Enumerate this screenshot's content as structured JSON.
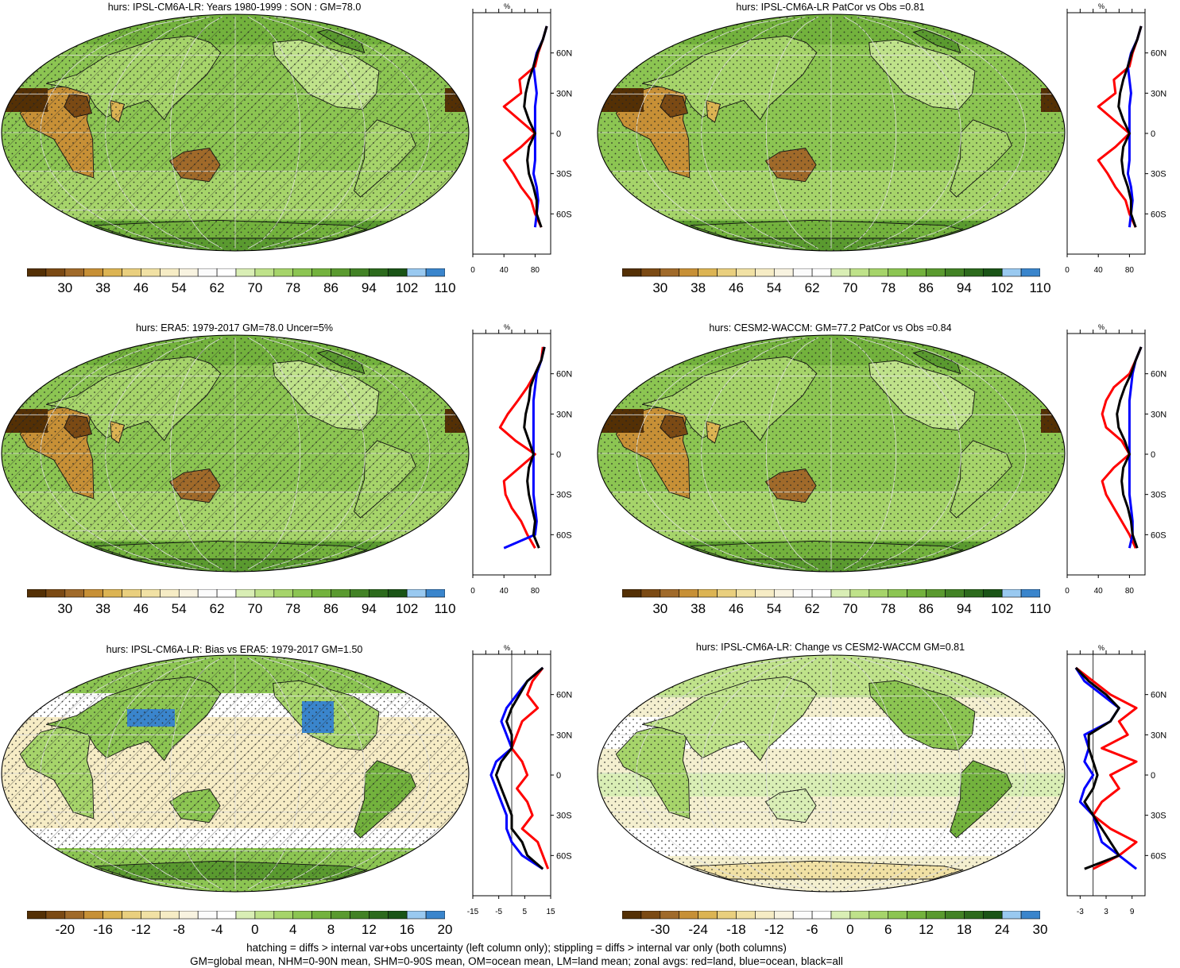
{
  "footer": {
    "line1": "hatching = diffs > internal var+obs uncertainty (left column only); stippling = diffs > internal var only (both columns)",
    "line2": "GM=global mean, NHM=0-90N mean, SHM=0-90S mean, OM=ocean mean, LM=land mean; zonal avgs: red=land, blue=ocean, black=all"
  },
  "colors": {
    "land": "#ff0000",
    "ocean": "#0000ff",
    "all": "#000000",
    "abs_palette": [
      "#543005",
      "#7b4a14",
      "#a06a2a",
      "#c79036",
      "#dcb453",
      "#e9cf7e",
      "#f1e1a4",
      "#f6ecc5",
      "#f8f3e0",
      "#fbfbfb",
      "#ffffff",
      "#d9eeb5",
      "#bfe28a",
      "#a6d46a",
      "#8cc552",
      "#73b23d",
      "#5a9a2f",
      "#428225",
      "#2c6a1c",
      "#1a5416",
      "#99c9f0",
      "#3a85cc"
    ],
    "diff_palette": [
      "#543005",
      "#7b4a14",
      "#a06a2a",
      "#c79036",
      "#dcb453",
      "#e9cf7e",
      "#f6ecc5",
      "#fbfbfb",
      "#ffffff",
      "#d9eeb5",
      "#bfe28a",
      "#a6d46a",
      "#8cc552",
      "#5a9a2f",
      "#2c6a1c",
      "#1a5416",
      "#99c9f0",
      "#3a85cc"
    ]
  },
  "chart_data": [
    {
      "id": "p1",
      "type": "heatmap",
      "title": "hurs: IPSL-CM6A-LR: Years 1980-1999 : SON : GM=78.0",
      "colorbar_ticks": [
        "30",
        "38",
        "46",
        "54",
        "62",
        "70",
        "78",
        "86",
        "94",
        "102",
        "110"
      ],
      "profile": {
        "unit": "%",
        "xticks": [
          "0",
          "40",
          "80"
        ],
        "xlim": [
          0,
          100
        ],
        "lat_ticks": [
          "60N",
          "30N",
          "0",
          "30S",
          "60S"
        ],
        "lat": [
          80,
          70,
          60,
          50,
          40,
          30,
          20,
          10,
          0,
          -10,
          -20,
          -30,
          -40,
          -50,
          -60,
          -70
        ],
        "land": [
          95,
          90,
          84,
          80,
          60,
          62,
          40,
          60,
          80,
          62,
          40,
          52,
          62,
          75,
          80,
          88
        ],
        "ocean": [
          95,
          90,
          82,
          78,
          80,
          82,
          80,
          80,
          80,
          80,
          80,
          78,
          82,
          84,
          82,
          80
        ],
        "all": [
          95,
          90,
          83,
          78,
          72,
          68,
          66,
          72,
          80,
          72,
          70,
          72,
          78,
          82,
          82,
          88
        ]
      }
    },
    {
      "id": "p2",
      "type": "heatmap",
      "title": "hurs: IPSL-CM6A-LR PatCor vs Obs =0.81",
      "colorbar_ticks": [
        "30",
        "38",
        "46",
        "54",
        "62",
        "70",
        "78",
        "86",
        "94",
        "102",
        "110"
      ],
      "profile": {
        "unit": "%",
        "xticks": [
          "0",
          "40",
          "80"
        ],
        "xlim": [
          0,
          100
        ],
        "lat_ticks": [
          "60N",
          "30N",
          "0",
          "30S",
          "60S"
        ],
        "lat": [
          80,
          70,
          60,
          50,
          40,
          30,
          20,
          10,
          0,
          -10,
          -20,
          -30,
          -40,
          -50,
          -60,
          -70
        ],
        "land": [
          95,
          90,
          84,
          80,
          60,
          62,
          40,
          60,
          80,
          62,
          40,
          52,
          62,
          75,
          80,
          88
        ],
        "ocean": [
          95,
          90,
          82,
          78,
          80,
          82,
          80,
          80,
          80,
          80,
          80,
          78,
          82,
          84,
          82,
          80
        ],
        "all": [
          95,
          90,
          83,
          78,
          72,
          68,
          66,
          72,
          80,
          72,
          70,
          72,
          78,
          82,
          82,
          88
        ]
      }
    },
    {
      "id": "p3",
      "type": "heatmap",
      "title": "hurs: ERA5: 1979-2017 GM=78.0 Uncer=5%",
      "colorbar_ticks": [
        "30",
        "38",
        "46",
        "54",
        "62",
        "70",
        "78",
        "86",
        "94",
        "102",
        "110"
      ],
      "profile": {
        "unit": "%",
        "xticks": [
          "0",
          "40",
          "80"
        ],
        "xlim": [
          0,
          100
        ],
        "lat_ticks": [
          "60N",
          "30N",
          "0",
          "30S",
          "60S"
        ],
        "lat": [
          80,
          70,
          60,
          50,
          40,
          30,
          20,
          10,
          0,
          -10,
          -20,
          -30,
          -40,
          -50,
          -60,
          -70
        ],
        "land": [
          90,
          88,
          80,
          70,
          58,
          45,
          35,
          55,
          80,
          60,
          40,
          42,
          50,
          62,
          70,
          80
        ],
        "ocean": [
          92,
          88,
          82,
          80,
          78,
          78,
          78,
          78,
          78,
          78,
          78,
          78,
          80,
          82,
          80,
          40
        ],
        "all": [
          92,
          88,
          80,
          74,
          72,
          68,
          66,
          72,
          78,
          72,
          70,
          72,
          76,
          80,
          78,
          85
        ]
      }
    },
    {
      "id": "p4",
      "type": "heatmap",
      "title": "hurs: CESM2-WACCM: GM=77.2 PatCor vs Obs =0.84",
      "colorbar_ticks": [
        "30",
        "38",
        "46",
        "54",
        "62",
        "70",
        "78",
        "86",
        "94",
        "102",
        "110"
      ],
      "profile": {
        "unit": "%",
        "xticks": [
          "0",
          "40",
          "80"
        ],
        "xlim": [
          0,
          100
        ],
        "lat_ticks": [
          "60N",
          "30N",
          "0",
          "30S",
          "60S"
        ],
        "lat": [
          80,
          70,
          60,
          50,
          40,
          30,
          20,
          10,
          0,
          -10,
          -20,
          -30,
          -40,
          -50,
          -60,
          -70
        ],
        "land": [
          95,
          88,
          80,
          60,
          50,
          45,
          50,
          70,
          80,
          60,
          45,
          50,
          60,
          70,
          80,
          88
        ],
        "ocean": [
          95,
          88,
          84,
          82,
          80,
          80,
          80,
          80,
          80,
          80,
          80,
          80,
          82,
          84,
          84,
          80
        ],
        "all": [
          95,
          88,
          82,
          74,
          68,
          64,
          66,
          74,
          80,
          72,
          70,
          72,
          78,
          82,
          84,
          90
        ]
      }
    },
    {
      "id": "p5",
      "type": "heatmap",
      "title": "hurs: IPSL-CM6A-LR: Bias vs ERA5: 1979-2017  GM=1.50",
      "colorbar_ticks": [
        "-20",
        "-16",
        "-12",
        "-8",
        "-4",
        "0",
        "4",
        "8",
        "12",
        "16",
        "20"
      ],
      "profile": {
        "unit": "%",
        "xticks": [
          "-15",
          "-5",
          "5",
          "15"
        ],
        "xlim": [
          -15,
          15
        ],
        "zero_line": 0,
        "lat_ticks": [
          "60N",
          "30N",
          "0",
          "30S",
          "60S"
        ],
        "lat": [
          80,
          70,
          60,
          50,
          40,
          30,
          20,
          10,
          0,
          -10,
          -20,
          -30,
          -40,
          -50,
          -60,
          -70
        ],
        "land": [
          12,
          8,
          6,
          10,
          4,
          2,
          0,
          4,
          6,
          2,
          6,
          8,
          4,
          10,
          12,
          14
        ],
        "ocean": [
          12,
          6,
          2,
          -2,
          -4,
          -2,
          0,
          -6,
          -8,
          -6,
          -4,
          -2,
          -2,
          0,
          4,
          12
        ],
        "all": [
          12,
          6,
          3,
          0,
          -2,
          0,
          0,
          -4,
          -6,
          -4,
          -2,
          0,
          0,
          4,
          6,
          12
        ]
      }
    },
    {
      "id": "p6",
      "type": "heatmap",
      "title": "hurs: IPSL-CM6A-LR: Change vs CESM2-WACCM GM=0.81",
      "colorbar_ticks": [
        "-30",
        "-24",
        "-18",
        "-12",
        "-6",
        "0",
        "6",
        "12",
        "18",
        "24",
        "30"
      ],
      "profile": {
        "unit": "%",
        "xticks": [
          "-3",
          "3",
          "9"
        ],
        "xlim": [
          -6,
          12
        ],
        "zero_line": 0,
        "lat_ticks": [
          "60N",
          "30N",
          "0",
          "30S",
          "60S"
        ],
        "lat": [
          80,
          70,
          60,
          50,
          40,
          30,
          20,
          10,
          0,
          -10,
          -20,
          -30,
          -40,
          -50,
          -60,
          -70
        ],
        "land": [
          -4,
          0,
          4,
          10,
          6,
          8,
          2,
          10,
          4,
          6,
          2,
          0,
          4,
          10,
          6,
          0
        ],
        "ocean": [
          -4,
          -2,
          2,
          6,
          4,
          -2,
          -1,
          -2,
          0,
          -2,
          -3,
          0,
          1,
          2,
          6,
          10
        ],
        "all": [
          -4,
          -1,
          3,
          6,
          4,
          -1,
          -1,
          0,
          1,
          0,
          -2,
          0,
          2,
          4,
          6,
          -2
        ]
      }
    }
  ]
}
